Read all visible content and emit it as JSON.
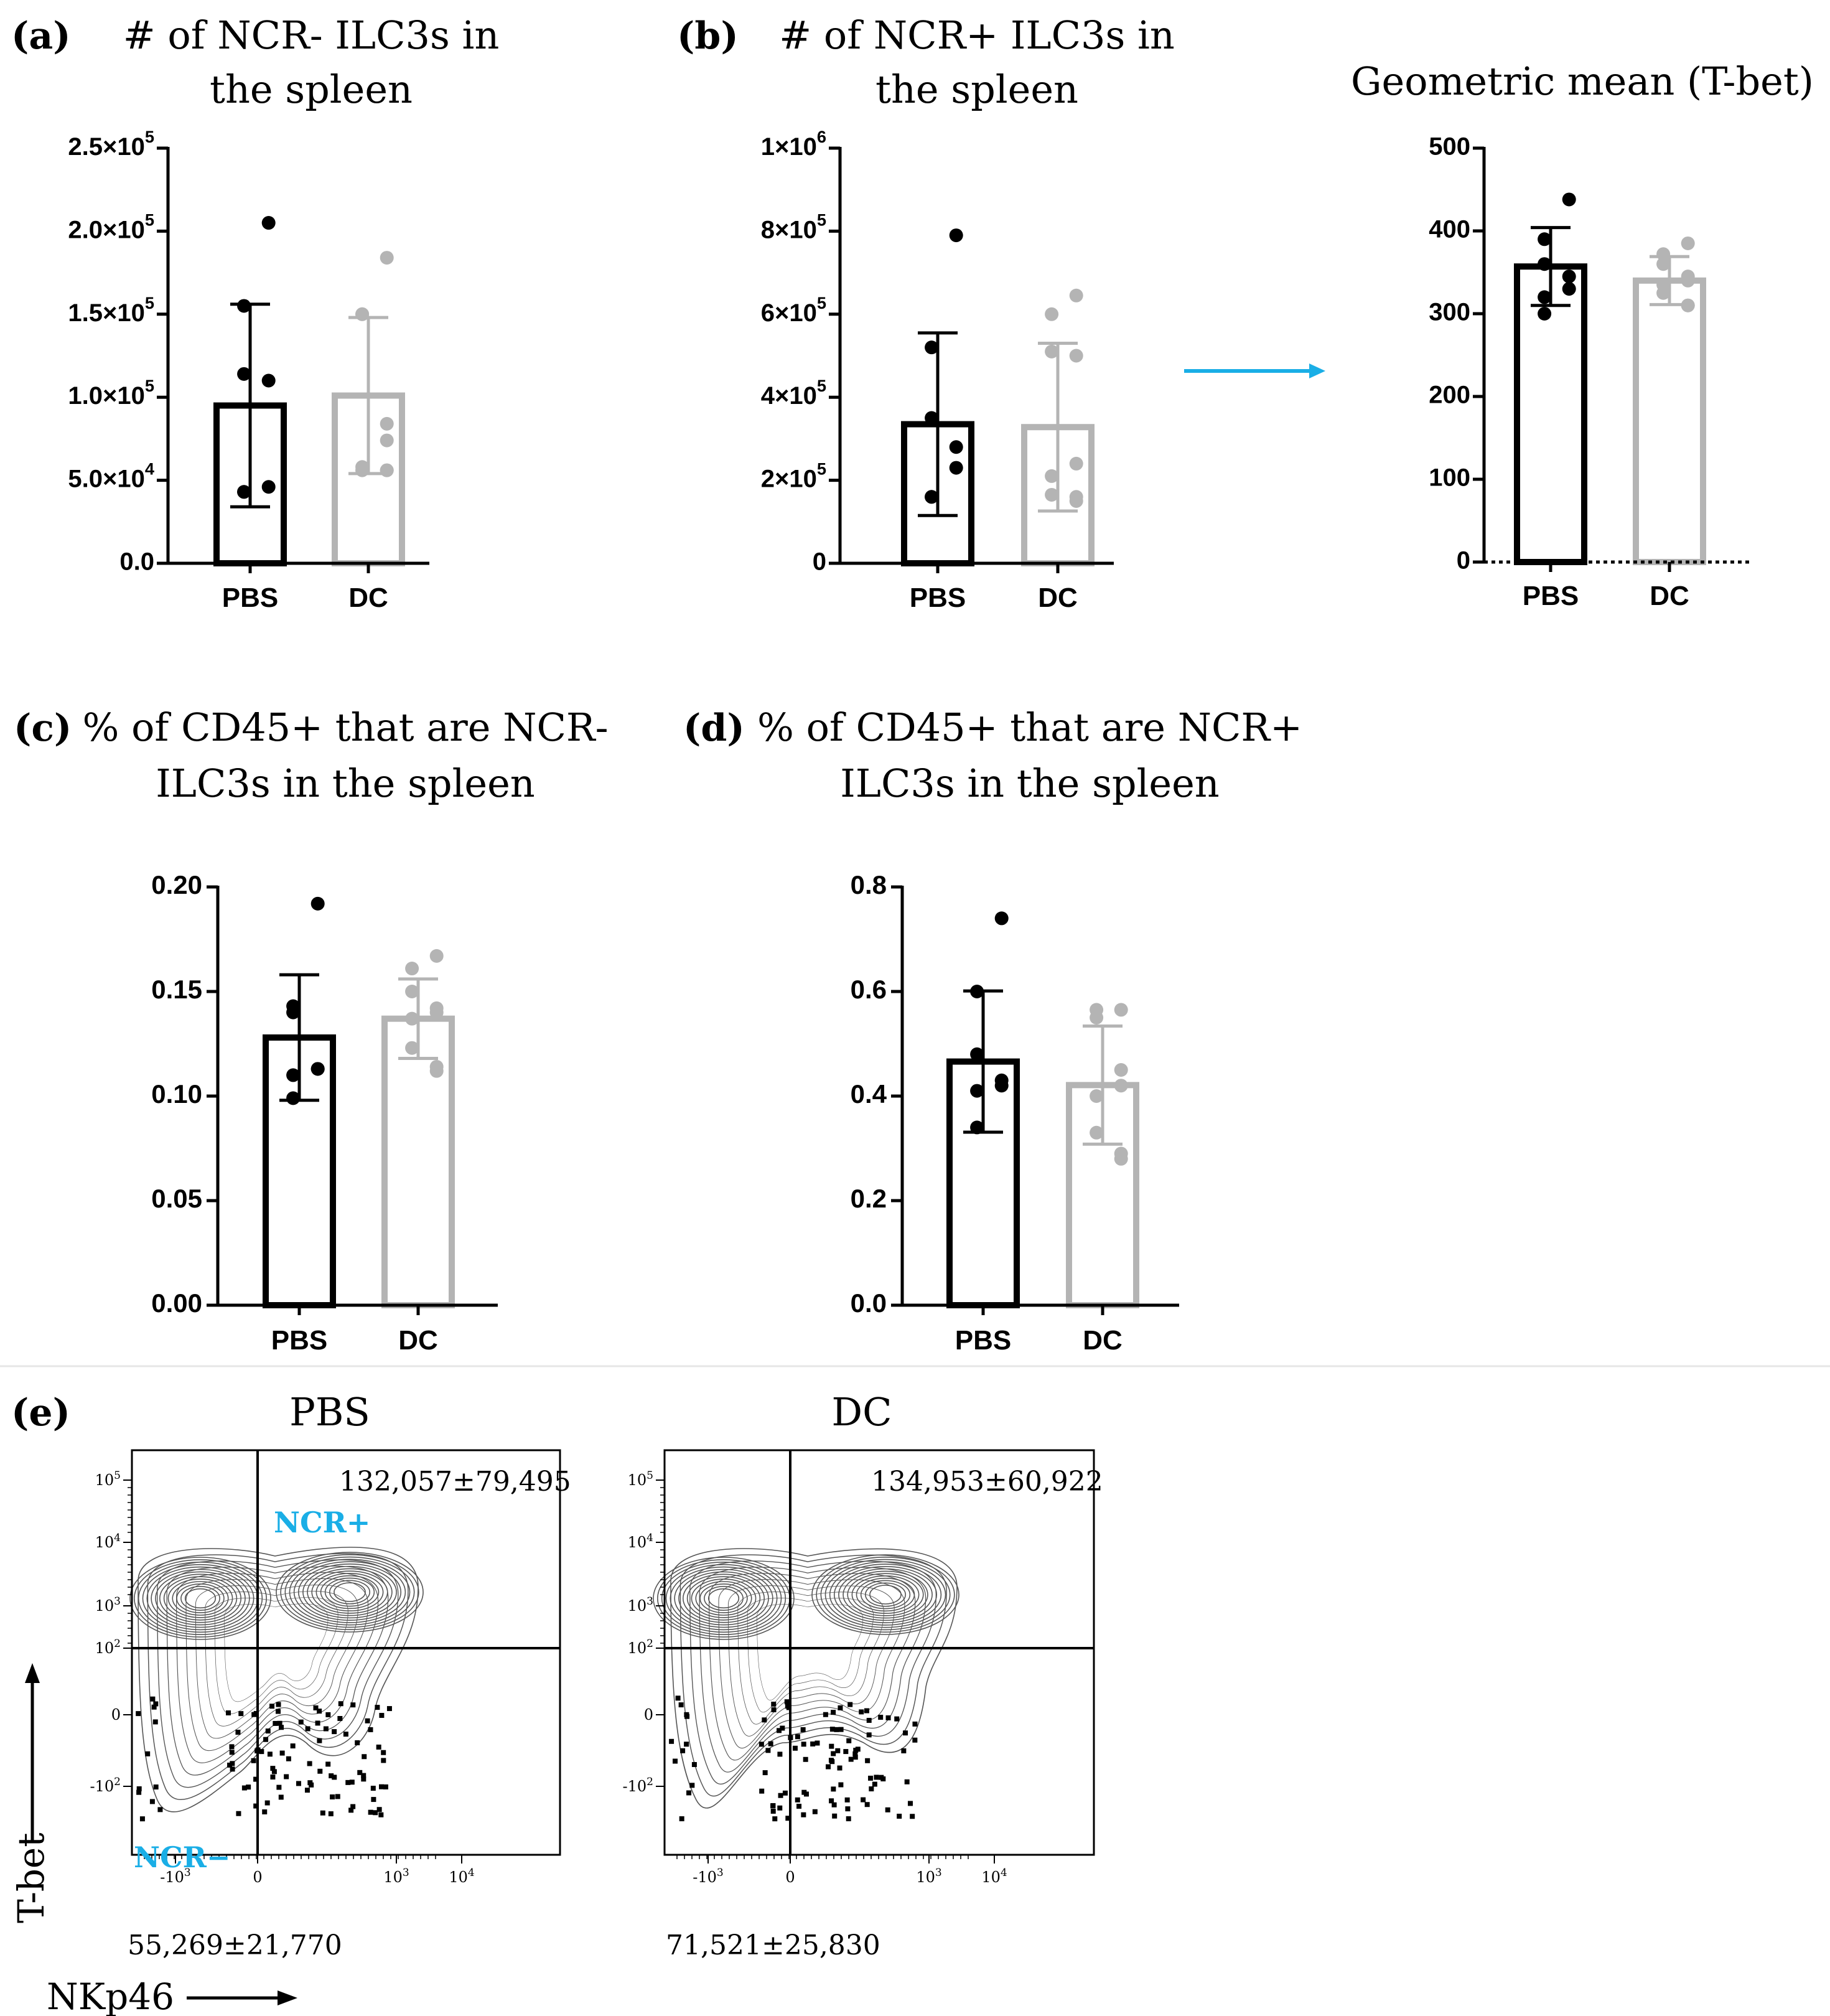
{
  "colors": {
    "pbs": "#000000",
    "dc": "#b4b4b4",
    "accent": "#1aaee6",
    "divider": "#e6e6e6"
  },
  "panels": {
    "a": {
      "letter": "(a)",
      "title_line1": "# of NCR- ILC3s in",
      "title_line2": "the spleen"
    },
    "b": {
      "letter": "(b)",
      "title_line1": "# of NCR+ ILC3s in",
      "title_line2": "the spleen"
    },
    "b2": {
      "title": "Geometric mean (T-bet)"
    },
    "c": {
      "letter": "(c)",
      "title_line1": "% of CD45+ that are NCR-",
      "title_line2": "ILC3s in the spleen"
    },
    "d": {
      "letter": "(d)",
      "title_line1": "% of CD45+ that are NCR+",
      "title_line2": "ILC3s in the spleen"
    },
    "e": {
      "letter": "(e)"
    }
  },
  "chart_data": [
    {
      "id": "a",
      "type": "bar",
      "categories": [
        "PBS",
        "DC"
      ],
      "ylim": [
        0,
        250000
      ],
      "yticks": [
        "0.0",
        "5.0×10^4",
        "1.0×10^5",
        "1.5×10^5",
        "2.0×10^5",
        "2.5×10^5"
      ],
      "ytick_values": [
        0,
        50000,
        100000,
        150000,
        200000,
        250000
      ],
      "means": [
        95000,
        101000
      ],
      "sd": [
        61000,
        47000
      ],
      "points": [
        [
          205000,
          155000,
          114000,
          110000,
          46000,
          43000,
          43000
        ],
        [
          184000,
          150000,
          150000,
          84000,
          74000,
          58000,
          56000,
          56000,
          56000
        ]
      ]
    },
    {
      "id": "b",
      "type": "bar",
      "categories": [
        "PBS",
        "DC"
      ],
      "ylim": [
        0,
        1000000
      ],
      "yticks": [
        "0",
        "2×10^5",
        "4×10^5",
        "6×10^5",
        "8×10^5",
        "1×10^6"
      ],
      "ytick_values": [
        0,
        200000,
        400000,
        600000,
        800000,
        1000000
      ],
      "means": [
        335000,
        328000
      ],
      "sd": [
        220000,
        202000
      ],
      "points": [
        [
          790000,
          520000,
          350000,
          280000,
          230000,
          160000,
          160000
        ],
        [
          645000,
          600000,
          510000,
          500000,
          240000,
          210000,
          165000,
          160000,
          150000
        ]
      ]
    },
    {
      "id": "b2",
      "type": "bar",
      "categories": [
        "PBS",
        "DC"
      ],
      "ylim": [
        0,
        500
      ],
      "yticks": [
        "0",
        "100",
        "200",
        "300",
        "400",
        "500"
      ],
      "ytick_values": [
        0,
        100,
        200,
        300,
        400,
        500
      ],
      "means": [
        357,
        340
      ],
      "sd": [
        47,
        29
      ],
      "points": [
        [
          438,
          390,
          360,
          345,
          330,
          320,
          300
        ],
        [
          385,
          372,
          360,
          345,
          340,
          335,
          325,
          310,
          310
        ]
      ]
    },
    {
      "id": "c",
      "type": "bar",
      "categories": [
        "PBS",
        "DC"
      ],
      "ylim": [
        0,
        0.2
      ],
      "yticks": [
        "0.00",
        "0.05",
        "0.10",
        "0.15",
        "0.20"
      ],
      "ytick_values": [
        0,
        0.05,
        0.1,
        0.15,
        0.2
      ],
      "means": [
        0.128,
        0.137
      ],
      "sd": [
        0.03,
        0.019
      ],
      "points": [
        [
          0.192,
          0.143,
          0.14,
          0.113,
          0.113,
          0.11,
          0.099
        ],
        [
          0.167,
          0.161,
          0.15,
          0.142,
          0.14,
          0.137,
          0.123,
          0.114,
          0.112
        ]
      ]
    },
    {
      "id": "d",
      "type": "bar",
      "categories": [
        "PBS",
        "DC"
      ],
      "ylim": [
        0,
        0.8
      ],
      "yticks": [
        "0.0",
        "0.2",
        "0.4",
        "0.6",
        "0.8"
      ],
      "ytick_values": [
        0,
        0.2,
        0.4,
        0.6,
        0.8
      ],
      "means": [
        0.466,
        0.421
      ],
      "sd": [
        0.135,
        0.113
      ],
      "points": [
        [
          0.74,
          0.6,
          0.48,
          0.43,
          0.42,
          0.41,
          0.34
        ],
        [
          0.565,
          0.565,
          0.55,
          0.45,
          0.42,
          0.4,
          0.33,
          0.29,
          0.28
        ]
      ]
    }
  ],
  "flow": {
    "pbs": {
      "title": "PBS",
      "top_count": "132,057±79,495",
      "bottom_count": "55,269±21,770",
      "label_pos": "NCR+",
      "label_neg": "NCR−"
    },
    "dc": {
      "title": "DC",
      "top_count": "134,953±60,922",
      "bottom_count": "71,521±25,830"
    },
    "y_axis_label": "T-bet",
    "x_axis_label": "NKp46",
    "yticks": [
      "10^5",
      "10^4",
      "10^3",
      "10^2",
      "0",
      "-10^2"
    ],
    "xticks": [
      "-10^3",
      "0",
      "10^3",
      "10^4"
    ]
  }
}
